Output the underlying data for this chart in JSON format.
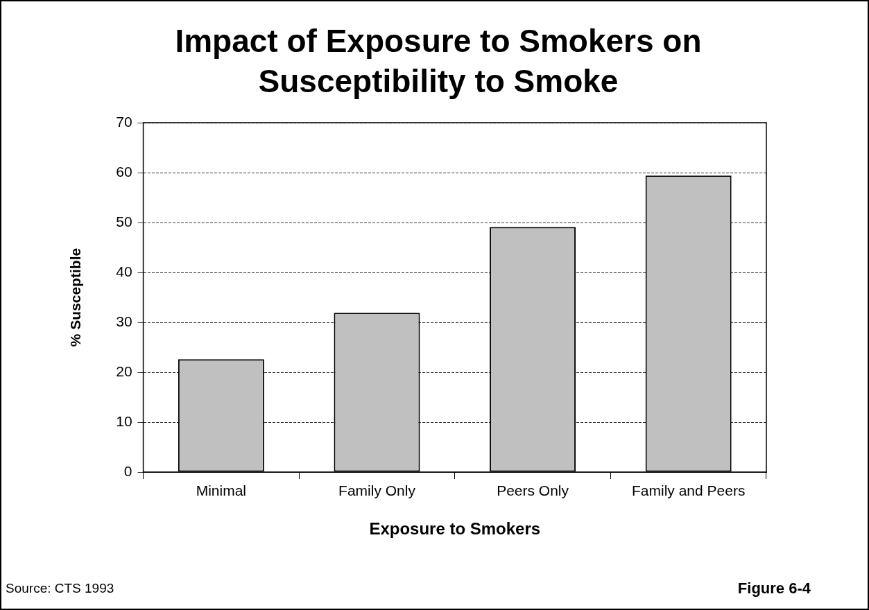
{
  "chart_data": {
    "type": "bar",
    "title": "Impact of Exposure to Smokers on Susceptibility to Smoke",
    "xlabel": "Exposure to Smokers",
    "ylabel": "% Susceptible",
    "categories": [
      "Minimal",
      "Family Only",
      "Peers Only",
      "Family and Peers"
    ],
    "values": [
      22.6,
      31.9,
      49.1,
      59.4
    ],
    "color": "#c0c0c0",
    "ylim": [
      0,
      70
    ],
    "yticks": [
      0,
      10,
      20,
      30,
      40,
      50,
      60,
      70
    ],
    "grid": "y",
    "legend": false,
    "annotations": [
      "Source: CTS 1993",
      "Figure 6-4"
    ]
  }
}
